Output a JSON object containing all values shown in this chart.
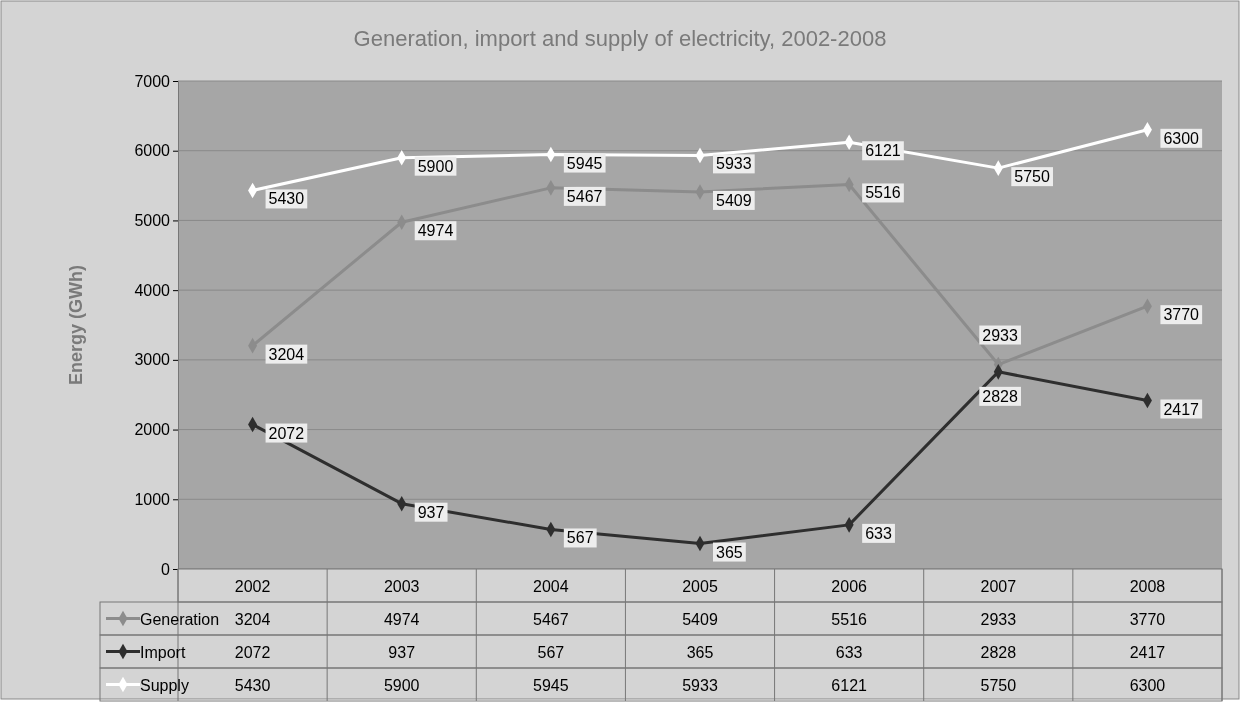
{
  "chart_data": {
    "type": "line",
    "title": "Generation, import and supply of electricity, 2002-2008",
    "ylabel": "Energy (GWh)",
    "categories": [
      "2002",
      "2003",
      "2004",
      "2005",
      "2006",
      "2007",
      "2008"
    ],
    "series": [
      {
        "name": "Generation",
        "color": "#8c8c8c",
        "values": [
          3204,
          4974,
          5467,
          5409,
          5516,
          2933,
          3770
        ]
      },
      {
        "name": "Import",
        "color": "#2e2e2e",
        "values": [
          2072,
          937,
          567,
          365,
          633,
          2828,
          2417
        ]
      },
      {
        "name": "Supply",
        "color": "#ffffff",
        "values": [
          5430,
          5900,
          5945,
          5933,
          6121,
          5750,
          6300
        ]
      }
    ],
    "ylim": [
      0,
      7000
    ],
    "yticks": [
      0,
      1000,
      2000,
      3000,
      4000,
      5000,
      6000,
      7000
    ],
    "grid": "y",
    "marker": "diamond",
    "line_style": "solid",
    "data_labels": true,
    "legend": "bottom",
    "annotations": [
      {
        "text": "3204",
        "x": "2002",
        "y": 3204
      },
      {
        "text": "4974",
        "x": "2003",
        "y": 4974
      },
      {
        "text": "5467",
        "x": "2004",
        "y": 5467
      },
      {
        "text": "5409",
        "x": "2005",
        "y": 5409
      },
      {
        "text": "5516",
        "x": "2006",
        "y": 5516
      },
      {
        "text": "2933",
        "x": "2007",
        "y": 2933
      },
      {
        "text": "3770",
        "x": "2008",
        "y": 3770
      },
      {
        "text": "2072",
        "x": "2002",
        "y": 2072
      },
      {
        "text": "937",
        "x": "2003",
        "y": 937
      },
      {
        "text": "567",
        "x": "2004",
        "y": 567
      },
      {
        "text": "365",
        "x": "2005",
        "y": 365
      },
      {
        "text": "633",
        "x": "2006",
        "y": 633
      },
      {
        "text": "2828",
        "x": "2007",
        "y": 2828
      },
      {
        "text": "2417",
        "x": "2008",
        "y": 2417
      },
      {
        "text": "5430",
        "x": "2002",
        "y": 5430
      },
      {
        "text": "5900",
        "x": "2003",
        "y": 5900
      },
      {
        "text": "5945",
        "x": "2004",
        "y": 5945
      },
      {
        "text": "5933",
        "x": "2005",
        "y": 5933
      },
      {
        "text": "6121",
        "x": "2006",
        "y": 6121
      },
      {
        "text": "5750",
        "x": "2007",
        "y": 5750
      },
      {
        "text": "6300",
        "x": "2008",
        "y": 6300
      }
    ]
  }
}
